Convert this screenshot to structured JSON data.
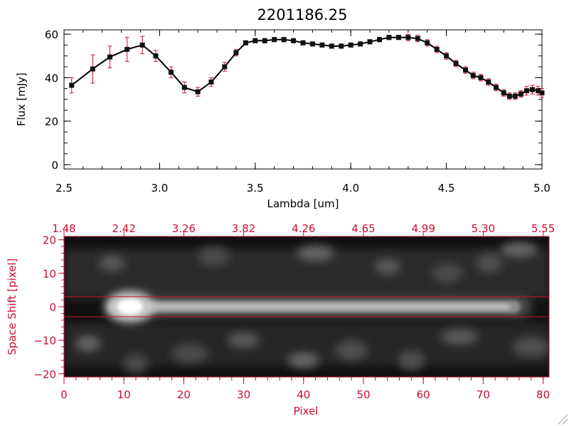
{
  "colors": {
    "spectrum_line": "#000000",
    "error_bar": "#c8102e",
    "marker": "#111111",
    "red_axis": "#c8102e",
    "background": "#ffffff"
  },
  "chart_data": [
    {
      "type": "line",
      "title": "2201186.25",
      "xlabel": "Lambda [um]",
      "ylabel": "Flux [mJy]",
      "xlim": [
        2.5,
        5.0
      ],
      "ylim": [
        -2,
        62
      ],
      "x_ticks": [
        "2.5",
        "3.0",
        "3.5",
        "4.0",
        "4.5",
        "5.0"
      ],
      "x_tick_values": [
        2.5,
        3.0,
        3.5,
        4.0,
        4.5,
        5.0
      ],
      "y_ticks": [
        "0",
        "20",
        "40",
        "60"
      ],
      "y_tick_values": [
        0,
        20,
        40,
        60
      ],
      "grid": false,
      "series": [
        {
          "x": [
            2.54,
            2.65,
            2.74,
            2.83,
            2.91,
            2.98,
            3.06,
            3.13,
            3.2,
            3.27,
            3.34,
            3.4,
            3.45,
            3.5,
            3.55,
            3.6,
            3.65,
            3.7,
            3.75,
            3.8,
            3.85,
            3.9,
            3.95,
            4.0,
            4.05,
            4.1,
            4.15,
            4.2,
            4.25,
            4.3,
            4.35,
            4.4,
            4.45,
            4.5,
            4.55,
            4.6,
            4.64,
            4.68,
            4.72,
            4.76,
            4.8,
            4.83,
            4.86,
            4.89,
            4.92,
            4.95,
            4.98,
            5.0
          ],
          "y": [
            36.5,
            44,
            49.5,
            53,
            55,
            50,
            42.5,
            35.5,
            33.5,
            38,
            45,
            51.5,
            56,
            57,
            57,
            57.5,
            57.5,
            57,
            56,
            55.5,
            55,
            54.5,
            54.5,
            55,
            55.5,
            56.5,
            57.5,
            58.5,
            58.5,
            58.5,
            58,
            56,
            53,
            50,
            46.5,
            43.5,
            41,
            40,
            38,
            35.5,
            33,
            31.5,
            31.5,
            32.5,
            34,
            34.5,
            34,
            33
          ],
          "yerr": [
            3.5,
            6.5,
            5,
            5.5,
            4,
            2.5,
            2.5,
            2.5,
            2,
            2,
            2,
            1.5,
            1,
            1,
            1,
            1,
            1,
            1,
            1,
            1,
            1,
            1,
            1,
            1,
            1,
            1,
            1,
            1,
            1,
            1.5,
            1.5,
            1.5,
            1.5,
            1.5,
            1.5,
            1.5,
            1.5,
            1.5,
            1.5,
            1.5,
            1.5,
            1.5,
            1.5,
            1.5,
            2,
            2,
            2,
            2
          ]
        }
      ]
    },
    {
      "type": "heatmap",
      "xlabel": "Pixel",
      "ylabel": "Space Shift [pixel]",
      "xlim": [
        0,
        81
      ],
      "ylim": [
        -21,
        21
      ],
      "x_ticks": [
        "0",
        "10",
        "20",
        "30",
        "40",
        "50",
        "60",
        "70",
        "80"
      ],
      "x_tick_values": [
        0,
        10,
        20,
        30,
        40,
        50,
        60,
        70,
        80
      ],
      "y_ticks": [
        "20",
        "10",
        "0",
        "−10",
        "−20"
      ],
      "y_tick_values": [
        20,
        10,
        0,
        -10,
        -20
      ],
      "top_ticks": [
        "1.48",
        "2.42",
        "3.26",
        "3.82",
        "4.26",
        "4.65",
        "4.99",
        "5.30",
        "5.55"
      ],
      "top_tick_values": [
        0,
        10,
        20,
        30,
        40,
        50,
        60,
        70,
        80
      ],
      "extraction_lines": [
        3,
        -3
      ],
      "spectrum_trace": {
        "y": 0,
        "x_start": 7,
        "x_end": 78,
        "peak_x": 11
      },
      "blobs": [
        {
          "x": 54,
          "y": 12
        },
        {
          "x": 64,
          "y": 10
        },
        {
          "x": 76,
          "y": 17
        },
        {
          "x": 71,
          "y": 13
        },
        {
          "x": 30,
          "y": -10
        },
        {
          "x": 21,
          "y": -14
        },
        {
          "x": 4,
          "y": -11
        },
        {
          "x": 48,
          "y": -13
        },
        {
          "x": 66,
          "y": -9
        },
        {
          "x": 12,
          "y": -17
        },
        {
          "x": 40,
          "y": -16
        },
        {
          "x": 78,
          "y": -12
        },
        {
          "x": 8,
          "y": 13
        },
        {
          "x": 25,
          "y": 15
        },
        {
          "x": 42,
          "y": 16
        },
        {
          "x": 58,
          "y": -16
        }
      ]
    }
  ]
}
